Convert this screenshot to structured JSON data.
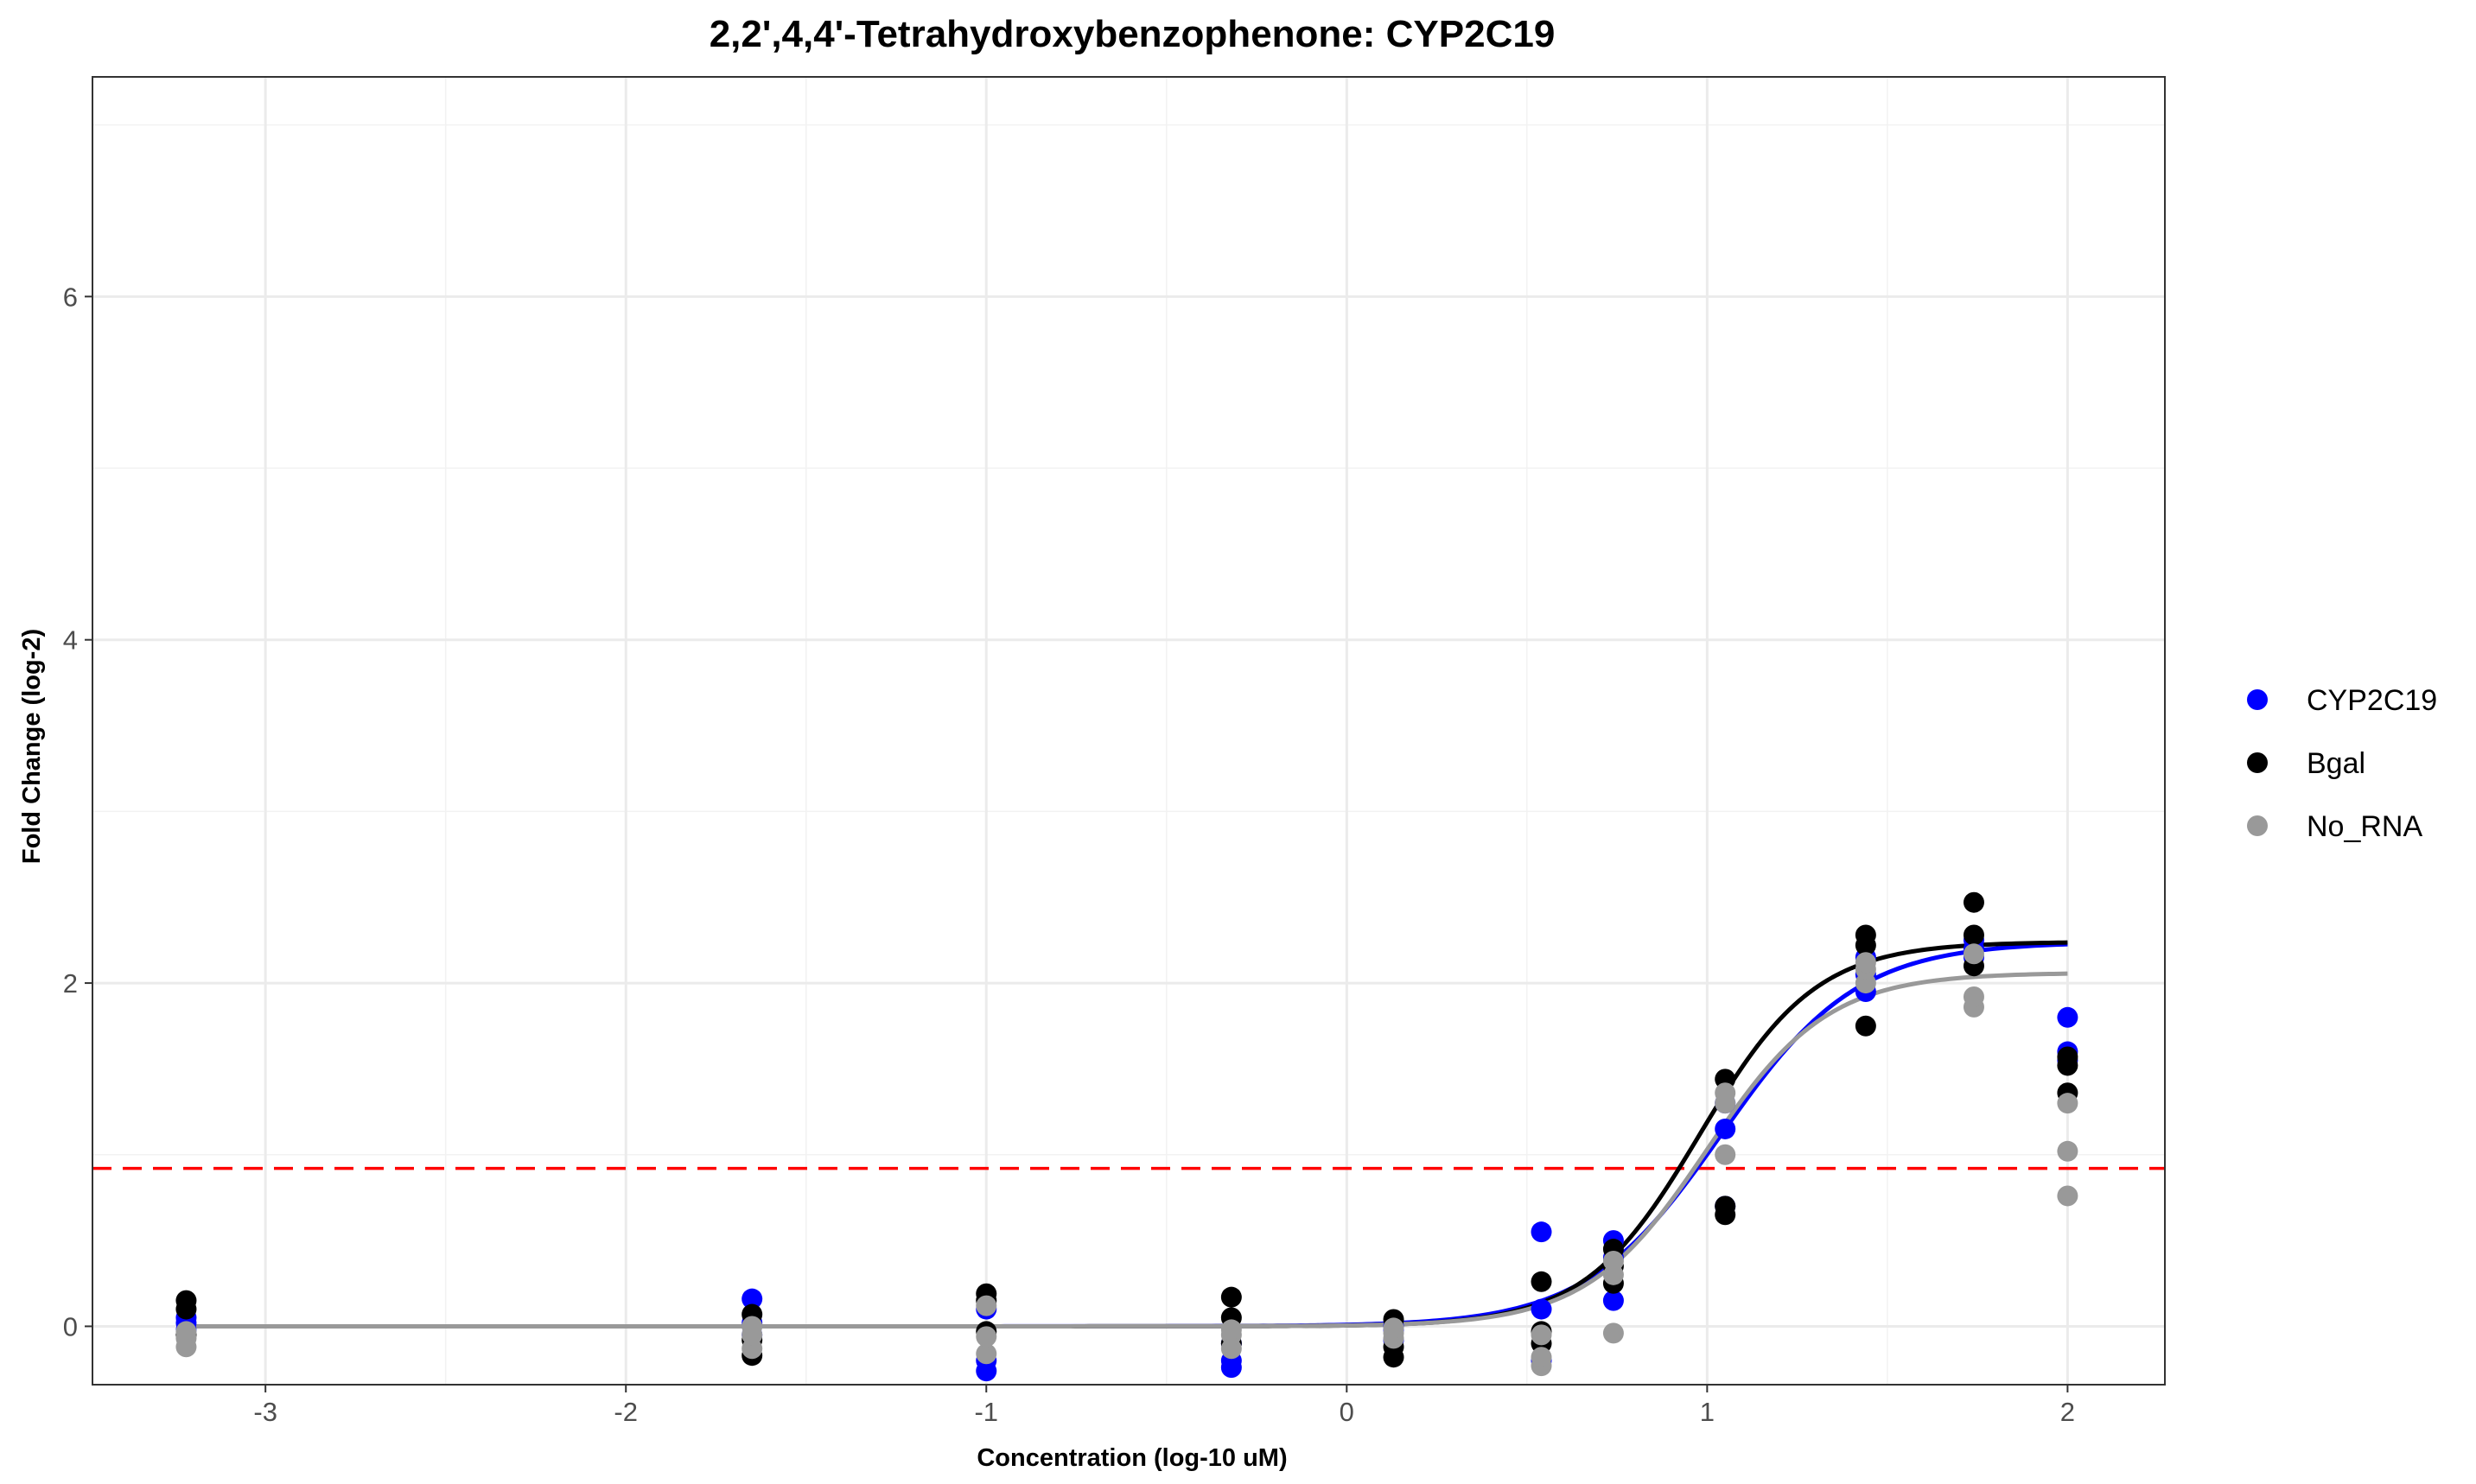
{
  "chart_data": {
    "type": "scatter",
    "title": "2,2',4,4'-Tetrahydroxybenzophenone: CYP2C19",
    "xlabel": "Concentration (log-10 uM)",
    "ylabel": "Fold Change (log-2)",
    "xlim": [
      -3.48,
      2.27
    ],
    "ylim": [
      -0.34,
      7.28
    ],
    "xticks": [
      -3,
      -2,
      -1,
      0,
      1,
      2
    ],
    "yticks": [
      0,
      2,
      4,
      6
    ],
    "grid": true,
    "legend_position": "right",
    "threshold": {
      "y": 0.92,
      "color": "#ff0000",
      "style": "dashed"
    },
    "series": [
      {
        "name": "CYP2C19",
        "color": "#0000ff",
        "points": [
          [
            -3.22,
            0.05
          ],
          [
            -3.22,
            -0.02
          ],
          [
            -3.22,
            0.02
          ],
          [
            -1.65,
            0.16
          ],
          [
            -1.65,
            0.02
          ],
          [
            -1.65,
            -0.05
          ],
          [
            -1.0,
            -0.26
          ],
          [
            -1.0,
            -0.2
          ],
          [
            -1.0,
            0.1
          ],
          [
            -0.32,
            -0.24
          ],
          [
            -0.32,
            -0.2
          ],
          [
            -0.32,
            -0.1
          ],
          [
            0.13,
            -0.08
          ],
          [
            0.13,
            -0.02
          ],
          [
            0.13,
            0.0
          ],
          [
            0.54,
            0.55
          ],
          [
            0.54,
            0.1
          ],
          [
            0.54,
            -0.2
          ],
          [
            0.74,
            0.5
          ],
          [
            0.74,
            0.15
          ],
          [
            0.74,
            0.4
          ],
          [
            1.05,
            1.15
          ],
          [
            1.05,
            0.7
          ],
          [
            1.05,
            1.3
          ],
          [
            1.44,
            1.95
          ],
          [
            1.44,
            2.05
          ],
          [
            1.44,
            2.15
          ],
          [
            1.74,
            2.2
          ],
          [
            1.74,
            2.15
          ],
          [
            1.74,
            2.25
          ],
          [
            2.0,
            1.8
          ],
          [
            2.0,
            1.6
          ],
          [
            2.0,
            1.55
          ]
        ],
        "fit": {
          "bottom": 0.0,
          "top": 2.24,
          "ec50": 1.04,
          "hill": 2.3
        }
      },
      {
        "name": "Bgal",
        "color": "#000000",
        "points": [
          [
            -3.22,
            0.15
          ],
          [
            -3.22,
            0.1
          ],
          [
            -3.22,
            -0.05
          ],
          [
            -1.65,
            0.07
          ],
          [
            -1.65,
            -0.17
          ],
          [
            -1.65,
            -0.08
          ],
          [
            -1.0,
            0.19
          ],
          [
            -1.0,
            0.15
          ],
          [
            -1.0,
            -0.03
          ],
          [
            -0.32,
            0.17
          ],
          [
            -0.32,
            0.05
          ],
          [
            -0.32,
            -0.1
          ],
          [
            0.13,
            0.04
          ],
          [
            0.13,
            -0.18
          ],
          [
            0.13,
            -0.12
          ],
          [
            0.54,
            0.26
          ],
          [
            0.54,
            -0.03
          ],
          [
            0.54,
            -0.1
          ],
          [
            0.74,
            0.25
          ],
          [
            0.74,
            0.45
          ],
          [
            0.74,
            0.35
          ],
          [
            1.05,
            1.44
          ],
          [
            1.05,
            0.65
          ],
          [
            1.05,
            0.7
          ],
          [
            1.44,
            2.28
          ],
          [
            1.44,
            1.75
          ],
          [
            1.44,
            2.22
          ],
          [
            1.74,
            2.47
          ],
          [
            1.74,
            2.28
          ],
          [
            1.74,
            2.1
          ],
          [
            2.0,
            1.52
          ],
          [
            2.0,
            1.36
          ],
          [
            2.0,
            1.57
          ]
        ],
        "fit": {
          "bottom": 0.0,
          "top": 2.24,
          "ec50": 0.98,
          "hill": 2.7
        }
      },
      {
        "name": "No_RNA",
        "color": "#999999",
        "points": [
          [
            -3.22,
            -0.12
          ],
          [
            -3.22,
            -0.07
          ],
          [
            -3.22,
            -0.03
          ],
          [
            -1.65,
            -0.13
          ],
          [
            -1.65,
            -0.05
          ],
          [
            -1.65,
            0.0
          ],
          [
            -1.0,
            -0.16
          ],
          [
            -1.0,
            -0.06
          ],
          [
            -1.0,
            0.12
          ],
          [
            -0.32,
            -0.13
          ],
          [
            -0.32,
            -0.05
          ],
          [
            -0.32,
            -0.02
          ],
          [
            0.13,
            -0.07
          ],
          [
            0.13,
            -0.04
          ],
          [
            0.13,
            -0.01
          ],
          [
            0.54,
            -0.23
          ],
          [
            0.54,
            -0.18
          ],
          [
            0.54,
            -0.05
          ],
          [
            0.74,
            -0.04
          ],
          [
            0.74,
            0.3
          ],
          [
            0.74,
            0.38
          ],
          [
            1.05,
            1.0
          ],
          [
            1.05,
            1.3
          ],
          [
            1.05,
            1.36
          ],
          [
            1.44,
            2.0
          ],
          [
            1.44,
            2.08
          ],
          [
            1.44,
            2.12
          ],
          [
            1.74,
            1.86
          ],
          [
            1.74,
            1.92
          ],
          [
            1.74,
            2.17
          ],
          [
            2.0,
            0.76
          ],
          [
            2.0,
            1.02
          ],
          [
            2.0,
            1.3
          ]
        ],
        "fit": {
          "bottom": 0.0,
          "top": 2.06,
          "ec50": 1.0,
          "hill": 2.6
        }
      }
    ]
  }
}
